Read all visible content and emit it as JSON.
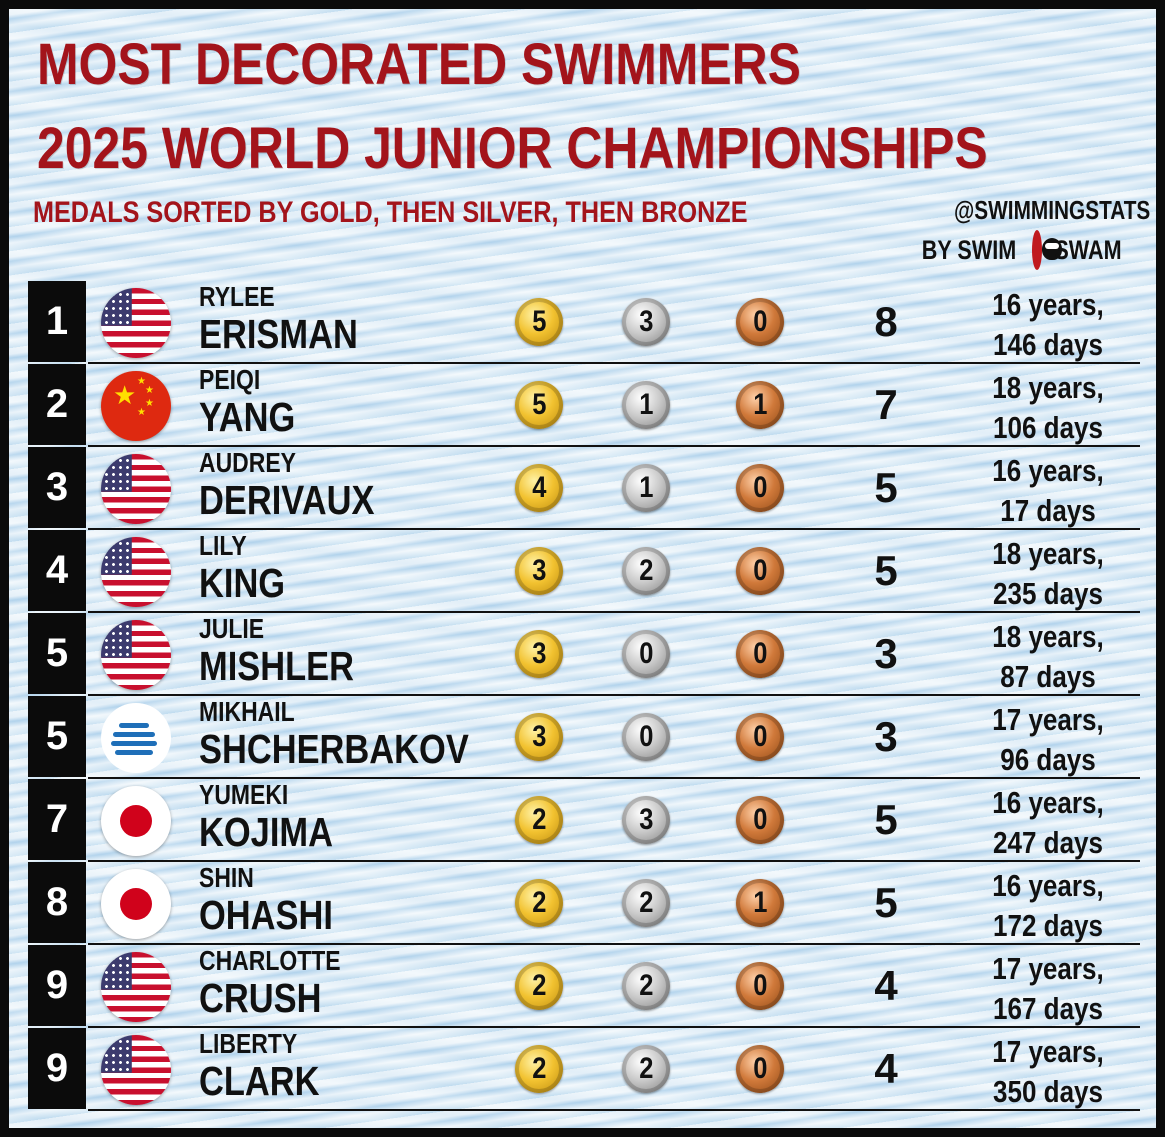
{
  "title_line1": "MOST DECORATED SWIMMERS",
  "title_line2": "2025 WORLD JUNIOR CHAMPIONSHIPS",
  "subtitle": "MEDALS SORTED BY GOLD, THEN SILVER, THEN BRONZE",
  "credit": {
    "handle": "@SWIMMINGSTATS",
    "by": "BY SWIM",
    "brand": "SWAM"
  },
  "colors": {
    "title": "#a3141b",
    "rank_bg": "#0b0b0b"
  },
  "swimmers": [
    {
      "rank": "1",
      "flag": "usa-flag",
      "first": "RYLEE",
      "last": "ERISMAN",
      "gold": "5",
      "silver": "3",
      "bronze": "0",
      "total": "8",
      "age_line1": "16 years,",
      "age_line2": "146 days"
    },
    {
      "rank": "2",
      "flag": "china-flag",
      "first": "PEIQI",
      "last": "YANG",
      "gold": "5",
      "silver": "1",
      "bronze": "1",
      "total": "7",
      "age_line1": "18 years,",
      "age_line2": "106 days"
    },
    {
      "rank": "3",
      "flag": "usa-flag",
      "first": "AUDREY",
      "last": "DERIVAUX",
      "gold": "4",
      "silver": "1",
      "bronze": "0",
      "total": "5",
      "age_line1": "16 years,",
      "age_line2": "17 days"
    },
    {
      "rank": "4",
      "flag": "usa-flag",
      "first": "LILY",
      "last": "KING",
      "gold": "3",
      "silver": "2",
      "bronze": "0",
      "total": "5",
      "age_line1": "18 years,",
      "age_line2": "235 days"
    },
    {
      "rank": "5",
      "flag": "usa-flag",
      "first": "JULIE",
      "last": "MISHLER",
      "gold": "3",
      "silver": "0",
      "bronze": "0",
      "total": "3",
      "age_line1": "18 years,",
      "age_line2": "87 days"
    },
    {
      "rank": "5",
      "flag": "neutral-flag",
      "first": "MIKHAIL",
      "last": "SHCHERBAKOV",
      "gold": "3",
      "silver": "0",
      "bronze": "0",
      "total": "3",
      "age_line1": "17 years,",
      "age_line2": "96 days"
    },
    {
      "rank": "7",
      "flag": "japan-flag",
      "first": "YUMEKI",
      "last": "KOJIMA",
      "gold": "2",
      "silver": "3",
      "bronze": "0",
      "total": "5",
      "age_line1": "16 years,",
      "age_line2": "247 days"
    },
    {
      "rank": "8",
      "flag": "japan-flag",
      "first": "SHIN",
      "last": "OHASHI",
      "gold": "2",
      "silver": "2",
      "bronze": "1",
      "total": "5",
      "age_line1": "16 years,",
      "age_line2": "172 days"
    },
    {
      "rank": "9",
      "flag": "usa-flag",
      "first": "CHARLOTTE",
      "last": "CRUSH",
      "gold": "2",
      "silver": "2",
      "bronze": "0",
      "total": "4",
      "age_line1": "17 years,",
      "age_line2": "167 days"
    },
    {
      "rank": "9",
      "flag": "usa-flag",
      "first": "LIBERTY",
      "last": "CLARK",
      "gold": "2",
      "silver": "2",
      "bronze": "0",
      "total": "4",
      "age_line1": "17 years,",
      "age_line2": "350 days"
    }
  ]
}
